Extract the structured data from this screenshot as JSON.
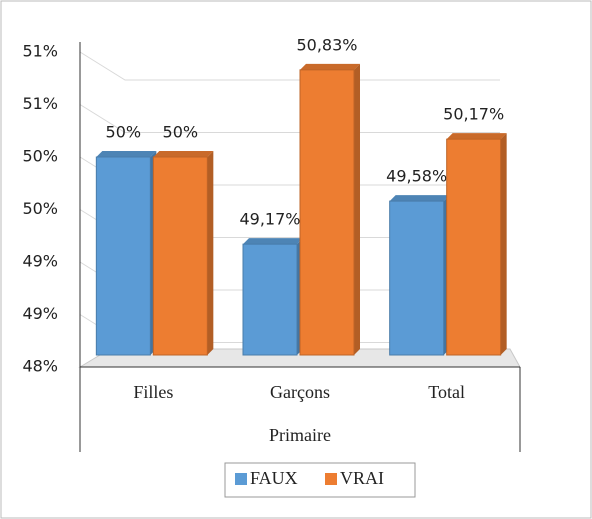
{
  "chart_data": {
    "type": "bar3d",
    "categories": [
      "Filles",
      "Garçons",
      "Total"
    ],
    "x_label": "Primaire",
    "series": [
      {
        "name": "FAUX",
        "color": "#5b9bd5",
        "values": [
          50,
          49.17,
          49.58
        ],
        "value_labels": [
          "50%",
          "49,17%",
          "49,58%"
        ]
      },
      {
        "name": "VRAI",
        "color": "#ed7d31",
        "values": [
          50,
          50.83,
          50.17
        ],
        "value_labels": [
          "50%",
          "50,83%",
          "50,17%"
        ]
      }
    ],
    "ylim": [
      48,
      51
    ],
    "yticks": [
      {
        "value": 48,
        "label": "48%"
      },
      {
        "value": 48.5,
        "label": "49%"
      },
      {
        "value": 49,
        "label": "49%"
      },
      {
        "value": 49.5,
        "label": "50%"
      },
      {
        "value": 50,
        "label": "50%"
      },
      {
        "value": 50.5,
        "label": "51%"
      },
      {
        "value": 51,
        "label": "51%"
      }
    ],
    "grid": true,
    "legend": "bottom"
  }
}
